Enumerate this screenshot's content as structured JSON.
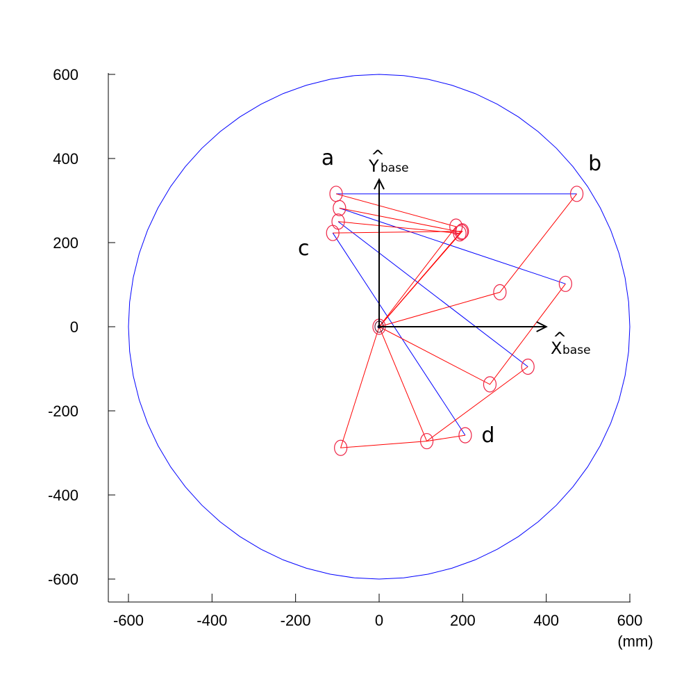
{
  "chart_data": {
    "type": "diagram",
    "units_label": "(mm)",
    "xlim": [
      -650,
      600
    ],
    "ylim": [
      -650,
      600
    ],
    "x_ticks": [
      -600,
      -400,
      -200,
      0,
      200,
      400,
      600
    ],
    "y_ticks": [
      600,
      400,
      200,
      0,
      -200,
      -400,
      -600
    ],
    "x_tick_labels": [
      "-600",
      "-400",
      "-200",
      "0",
      "200",
      "400",
      "600"
    ],
    "y_tick_labels": [
      "600",
      "400",
      "200",
      "0",
      "-200",
      "-400",
      "-600"
    ],
    "workspace_circle": {
      "center": [
        0,
        0
      ],
      "radius": 600,
      "color": "#0000ff"
    },
    "base_axes": {
      "x_axis": {
        "name": "X",
        "subscript": "base",
        "hat": "^",
        "end": [
          400,
          0
        ]
      },
      "y_axis": {
        "name": "Y",
        "subscript": "base",
        "hat": "^",
        "end": [
          0,
          350
        ]
      }
    },
    "target_points": [
      {
        "label": "a",
        "x": -103,
        "y": 316
      },
      {
        "label": "b",
        "x": 473,
        "y": 316
      },
      {
        "label": "c",
        "x": -111,
        "y": 223
      },
      {
        "label": "d",
        "x": 206,
        "y": -258
      }
    ],
    "blue_path": {
      "color": "#0000ff",
      "segments": [
        [
          [
            -103,
            316
          ],
          [
            473,
            316
          ]
        ],
        [
          [
            -95,
            282
          ],
          [
            446,
            102
          ]
        ],
        [
          [
            -98,
            250
          ],
          [
            356,
            -95
          ]
        ],
        [
          [
            -111,
            223
          ],
          [
            206,
            -258
          ]
        ]
      ]
    },
    "red_links": {
      "color": "#ff0000",
      "chains": [
        [
          [
            0,
            0
          ],
          [
            184,
            238
          ],
          [
            -103,
            316
          ]
        ],
        [
          [
            0,
            0
          ],
          [
            197,
            225
          ],
          [
            -95,
            282
          ]
        ],
        [
          [
            0,
            0
          ],
          [
            193,
            222
          ],
          [
            -98,
            250
          ]
        ],
        [
          [
            0,
            0
          ],
          [
            199,
            227
          ],
          [
            -111,
            223
          ]
        ],
        [
          [
            0,
            0
          ],
          [
            289,
            82
          ],
          [
            473,
            316
          ]
        ],
        [
          [
            0,
            0
          ],
          [
            265,
            -137
          ],
          [
            446,
            102
          ]
        ],
        [
          [
            0,
            0
          ],
          [
            114,
            -272
          ],
          [
            356,
            -95
          ]
        ],
        [
          [
            0,
            0
          ],
          [
            -92,
            -288
          ],
          [
            114,
            -272
          ],
          [
            206,
            -258
          ]
        ]
      ]
    },
    "joint_circles": [
      [
        0,
        0
      ],
      [
        -103,
        316
      ],
      [
        473,
        316
      ],
      [
        -95,
        282
      ],
      [
        446,
        102
      ],
      [
        -98,
        250
      ],
      [
        356,
        -95
      ],
      [
        -111,
        223
      ],
      [
        206,
        -258
      ],
      [
        184,
        238
      ],
      [
        197,
        225
      ],
      [
        193,
        222
      ],
      [
        199,
        227
      ],
      [
        289,
        82
      ],
      [
        265,
        -137
      ],
      [
        114,
        -272
      ],
      [
        -92,
        -288
      ]
    ]
  }
}
